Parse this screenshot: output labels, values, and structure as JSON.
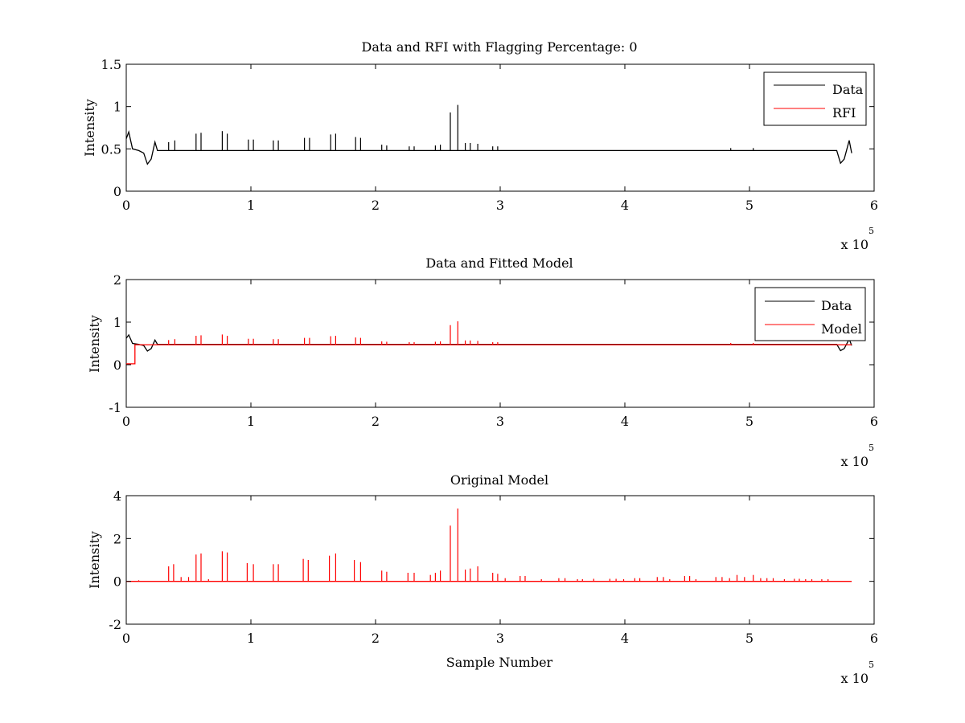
{
  "chart_data": [
    {
      "type": "line",
      "title": "Data and RFI with Flagging Percentage: 0",
      "xlabel": "",
      "ylabel": "Intensity",
      "xlim": [
        0,
        6
      ],
      "ylim": [
        0,
        1.5
      ],
      "x_exponent": "5",
      "x_multiplier_label": "x 10",
      "xticks": [
        "0",
        "1",
        "2",
        "3",
        "4",
        "5",
        "6"
      ],
      "yticks": [
        "0",
        "0.5",
        "1",
        "1.5"
      ],
      "legend_location": "top-right",
      "series": [
        {
          "name": "Data",
          "color": "#000000",
          "baseline": 0.48,
          "edges": [
            [
              0.0,
              0.62
            ],
            [
              0.02,
              0.7
            ],
            [
              0.05,
              0.5
            ],
            [
              0.1,
              0.48
            ],
            [
              0.14,
              0.45
            ],
            [
              0.17,
              0.32
            ],
            [
              0.2,
              0.38
            ],
            [
              0.23,
              0.58
            ],
            [
              0.25,
              0.48
            ],
            [
              5.7,
              0.48
            ],
            [
              5.73,
              0.33
            ],
            [
              5.76,
              0.38
            ],
            [
              5.8,
              0.6
            ],
            [
              5.82,
              0.45
            ]
          ],
          "spikes": [
            [
              0.34,
              0.58
            ],
            [
              0.39,
              0.6
            ],
            [
              0.56,
              0.68
            ],
            [
              0.6,
              0.69
            ],
            [
              0.77,
              0.71
            ],
            [
              0.81,
              0.68
            ],
            [
              0.98,
              0.61
            ],
            [
              1.02,
              0.61
            ],
            [
              1.18,
              0.6
            ],
            [
              1.22,
              0.6
            ],
            [
              1.43,
              0.63
            ],
            [
              1.47,
              0.63
            ],
            [
              1.64,
              0.67
            ],
            [
              1.68,
              0.68
            ],
            [
              1.84,
              0.64
            ],
            [
              1.88,
              0.63
            ],
            [
              2.05,
              0.55
            ],
            [
              2.09,
              0.54
            ],
            [
              2.27,
              0.53
            ],
            [
              2.31,
              0.53
            ],
            [
              2.48,
              0.54
            ],
            [
              2.52,
              0.55
            ],
            [
              2.6,
              0.93
            ],
            [
              2.66,
              1.02
            ],
            [
              2.72,
              0.57
            ],
            [
              2.76,
              0.57
            ],
            [
              2.82,
              0.56
            ],
            [
              2.94,
              0.53
            ],
            [
              2.98,
              0.53
            ],
            [
              4.85,
              0.51
            ],
            [
              5.03,
              0.51
            ]
          ]
        },
        {
          "name": "RFI",
          "color": "#ff0000",
          "values": []
        }
      ]
    },
    {
      "type": "line",
      "title": "Data and Fitted Model",
      "xlabel": "",
      "ylabel": "Intensity",
      "xlim": [
        0,
        6
      ],
      "ylim": [
        -1,
        2
      ],
      "x_exponent": "5",
      "x_multiplier_label": "x 10",
      "xticks": [
        "0",
        "1",
        "2",
        "3",
        "4",
        "5",
        "6"
      ],
      "yticks": [
        "-1",
        "0",
        "1",
        "2"
      ],
      "legend_location": "top-right",
      "series": [
        {
          "name": "Data",
          "color": "#000000",
          "baseline": 0.48,
          "edges": [
            [
              0.0,
              0.62
            ],
            [
              0.02,
              0.7
            ],
            [
              0.05,
              0.5
            ],
            [
              0.1,
              0.48
            ],
            [
              0.14,
              0.45
            ],
            [
              0.17,
              0.32
            ],
            [
              0.2,
              0.38
            ],
            [
              0.23,
              0.58
            ],
            [
              0.25,
              0.48
            ],
            [
              5.7,
              0.48
            ],
            [
              5.73,
              0.33
            ],
            [
              5.76,
              0.38
            ],
            [
              5.8,
              0.6
            ],
            [
              5.82,
              0.45
            ]
          ],
          "spikes": []
        },
        {
          "name": "Model",
          "color": "#ff0000",
          "baseline": 0.47,
          "edges": [
            [
              0.0,
              0.02
            ],
            [
              0.07,
              0.02
            ],
            [
              0.07,
              0.47
            ],
            [
              5.82,
              0.47
            ]
          ],
          "spikes": [
            [
              0.34,
              0.58
            ],
            [
              0.39,
              0.6
            ],
            [
              0.56,
              0.68
            ],
            [
              0.6,
              0.69
            ],
            [
              0.77,
              0.71
            ],
            [
              0.81,
              0.68
            ],
            [
              0.98,
              0.61
            ],
            [
              1.02,
              0.61
            ],
            [
              1.18,
              0.6
            ],
            [
              1.22,
              0.6
            ],
            [
              1.43,
              0.63
            ],
            [
              1.47,
              0.63
            ],
            [
              1.64,
              0.67
            ],
            [
              1.68,
              0.68
            ],
            [
              1.84,
              0.64
            ],
            [
              1.88,
              0.63
            ],
            [
              2.05,
              0.55
            ],
            [
              2.09,
              0.54
            ],
            [
              2.27,
              0.53
            ],
            [
              2.31,
              0.53
            ],
            [
              2.48,
              0.54
            ],
            [
              2.52,
              0.55
            ],
            [
              2.6,
              0.93
            ],
            [
              2.66,
              1.02
            ],
            [
              2.72,
              0.57
            ],
            [
              2.76,
              0.57
            ],
            [
              2.82,
              0.56
            ],
            [
              2.94,
              0.53
            ],
            [
              2.98,
              0.53
            ],
            [
              4.85,
              0.51
            ],
            [
              5.03,
              0.51
            ]
          ]
        }
      ]
    },
    {
      "type": "line",
      "title": "Original Model",
      "xlabel": "Sample Number",
      "ylabel": "Intensity",
      "xlim": [
        0,
        6
      ],
      "ylim": [
        -2,
        4
      ],
      "x_exponent": "5",
      "x_multiplier_label": "x 10",
      "xticks": [
        "0",
        "1",
        "2",
        "3",
        "4",
        "5",
        "6"
      ],
      "yticks": [
        "-2",
        "0",
        "2",
        "4"
      ],
      "legend_location": "none",
      "series": [
        {
          "name": "",
          "color": "#ff0000",
          "baseline": 0,
          "edges": [
            [
              0.0,
              0
            ],
            [
              5.82,
              0
            ]
          ],
          "spikes": [
            [
              0.1,
              0.05
            ],
            [
              0.34,
              0.7
            ],
            [
              0.38,
              0.8
            ],
            [
              0.44,
              0.2
            ],
            [
              0.5,
              0.2
            ],
            [
              0.56,
              1.25
            ],
            [
              0.6,
              1.3
            ],
            [
              0.66,
              0.1
            ],
            [
              0.77,
              1.4
            ],
            [
              0.81,
              1.35
            ],
            [
              0.97,
              0.85
            ],
            [
              1.02,
              0.8
            ],
            [
              1.18,
              0.8
            ],
            [
              1.22,
              0.8
            ],
            [
              1.42,
              1.05
            ],
            [
              1.46,
              1.0
            ],
            [
              1.63,
              1.2
            ],
            [
              1.68,
              1.3
            ],
            [
              1.83,
              1.0
            ],
            [
              1.88,
              0.9
            ],
            [
              2.05,
              0.5
            ],
            [
              2.09,
              0.45
            ],
            [
              2.26,
              0.4
            ],
            [
              2.31,
              0.4
            ],
            [
              2.44,
              0.3
            ],
            [
              2.48,
              0.4
            ],
            [
              2.52,
              0.5
            ],
            [
              2.6,
              2.6
            ],
            [
              2.66,
              3.4
            ],
            [
              2.72,
              0.55
            ],
            [
              2.76,
              0.6
            ],
            [
              2.82,
              0.7
            ],
            [
              2.94,
              0.4
            ],
            [
              2.98,
              0.35
            ],
            [
              3.04,
              0.15
            ],
            [
              3.16,
              0.25
            ],
            [
              3.2,
              0.25
            ],
            [
              3.33,
              0.1
            ],
            [
              3.47,
              0.15
            ],
            [
              3.52,
              0.15
            ],
            [
              3.62,
              0.1
            ],
            [
              3.66,
              0.1
            ],
            [
              3.75,
              0.12
            ],
            [
              3.88,
              0.12
            ],
            [
              3.93,
              0.12
            ],
            [
              3.99,
              0.1
            ],
            [
              4.08,
              0.15
            ],
            [
              4.12,
              0.15
            ],
            [
              4.26,
              0.2
            ],
            [
              4.31,
              0.2
            ],
            [
              4.36,
              0.1
            ],
            [
              4.48,
              0.25
            ],
            [
              4.52,
              0.25
            ],
            [
              4.57,
              0.1
            ],
            [
              4.73,
              0.2
            ],
            [
              4.78,
              0.2
            ],
            [
              4.84,
              0.15
            ],
            [
              4.9,
              0.3
            ],
            [
              4.96,
              0.2
            ],
            [
              5.03,
              0.3
            ],
            [
              5.09,
              0.15
            ],
            [
              5.14,
              0.15
            ],
            [
              5.19,
              0.15
            ],
            [
              5.28,
              0.1
            ],
            [
              5.36,
              0.12
            ],
            [
              5.4,
              0.12
            ],
            [
              5.45,
              0.1
            ],
            [
              5.5,
              0.1
            ],
            [
              5.58,
              0.1
            ],
            [
              5.63,
              0.1
            ]
          ]
        }
      ]
    }
  ]
}
